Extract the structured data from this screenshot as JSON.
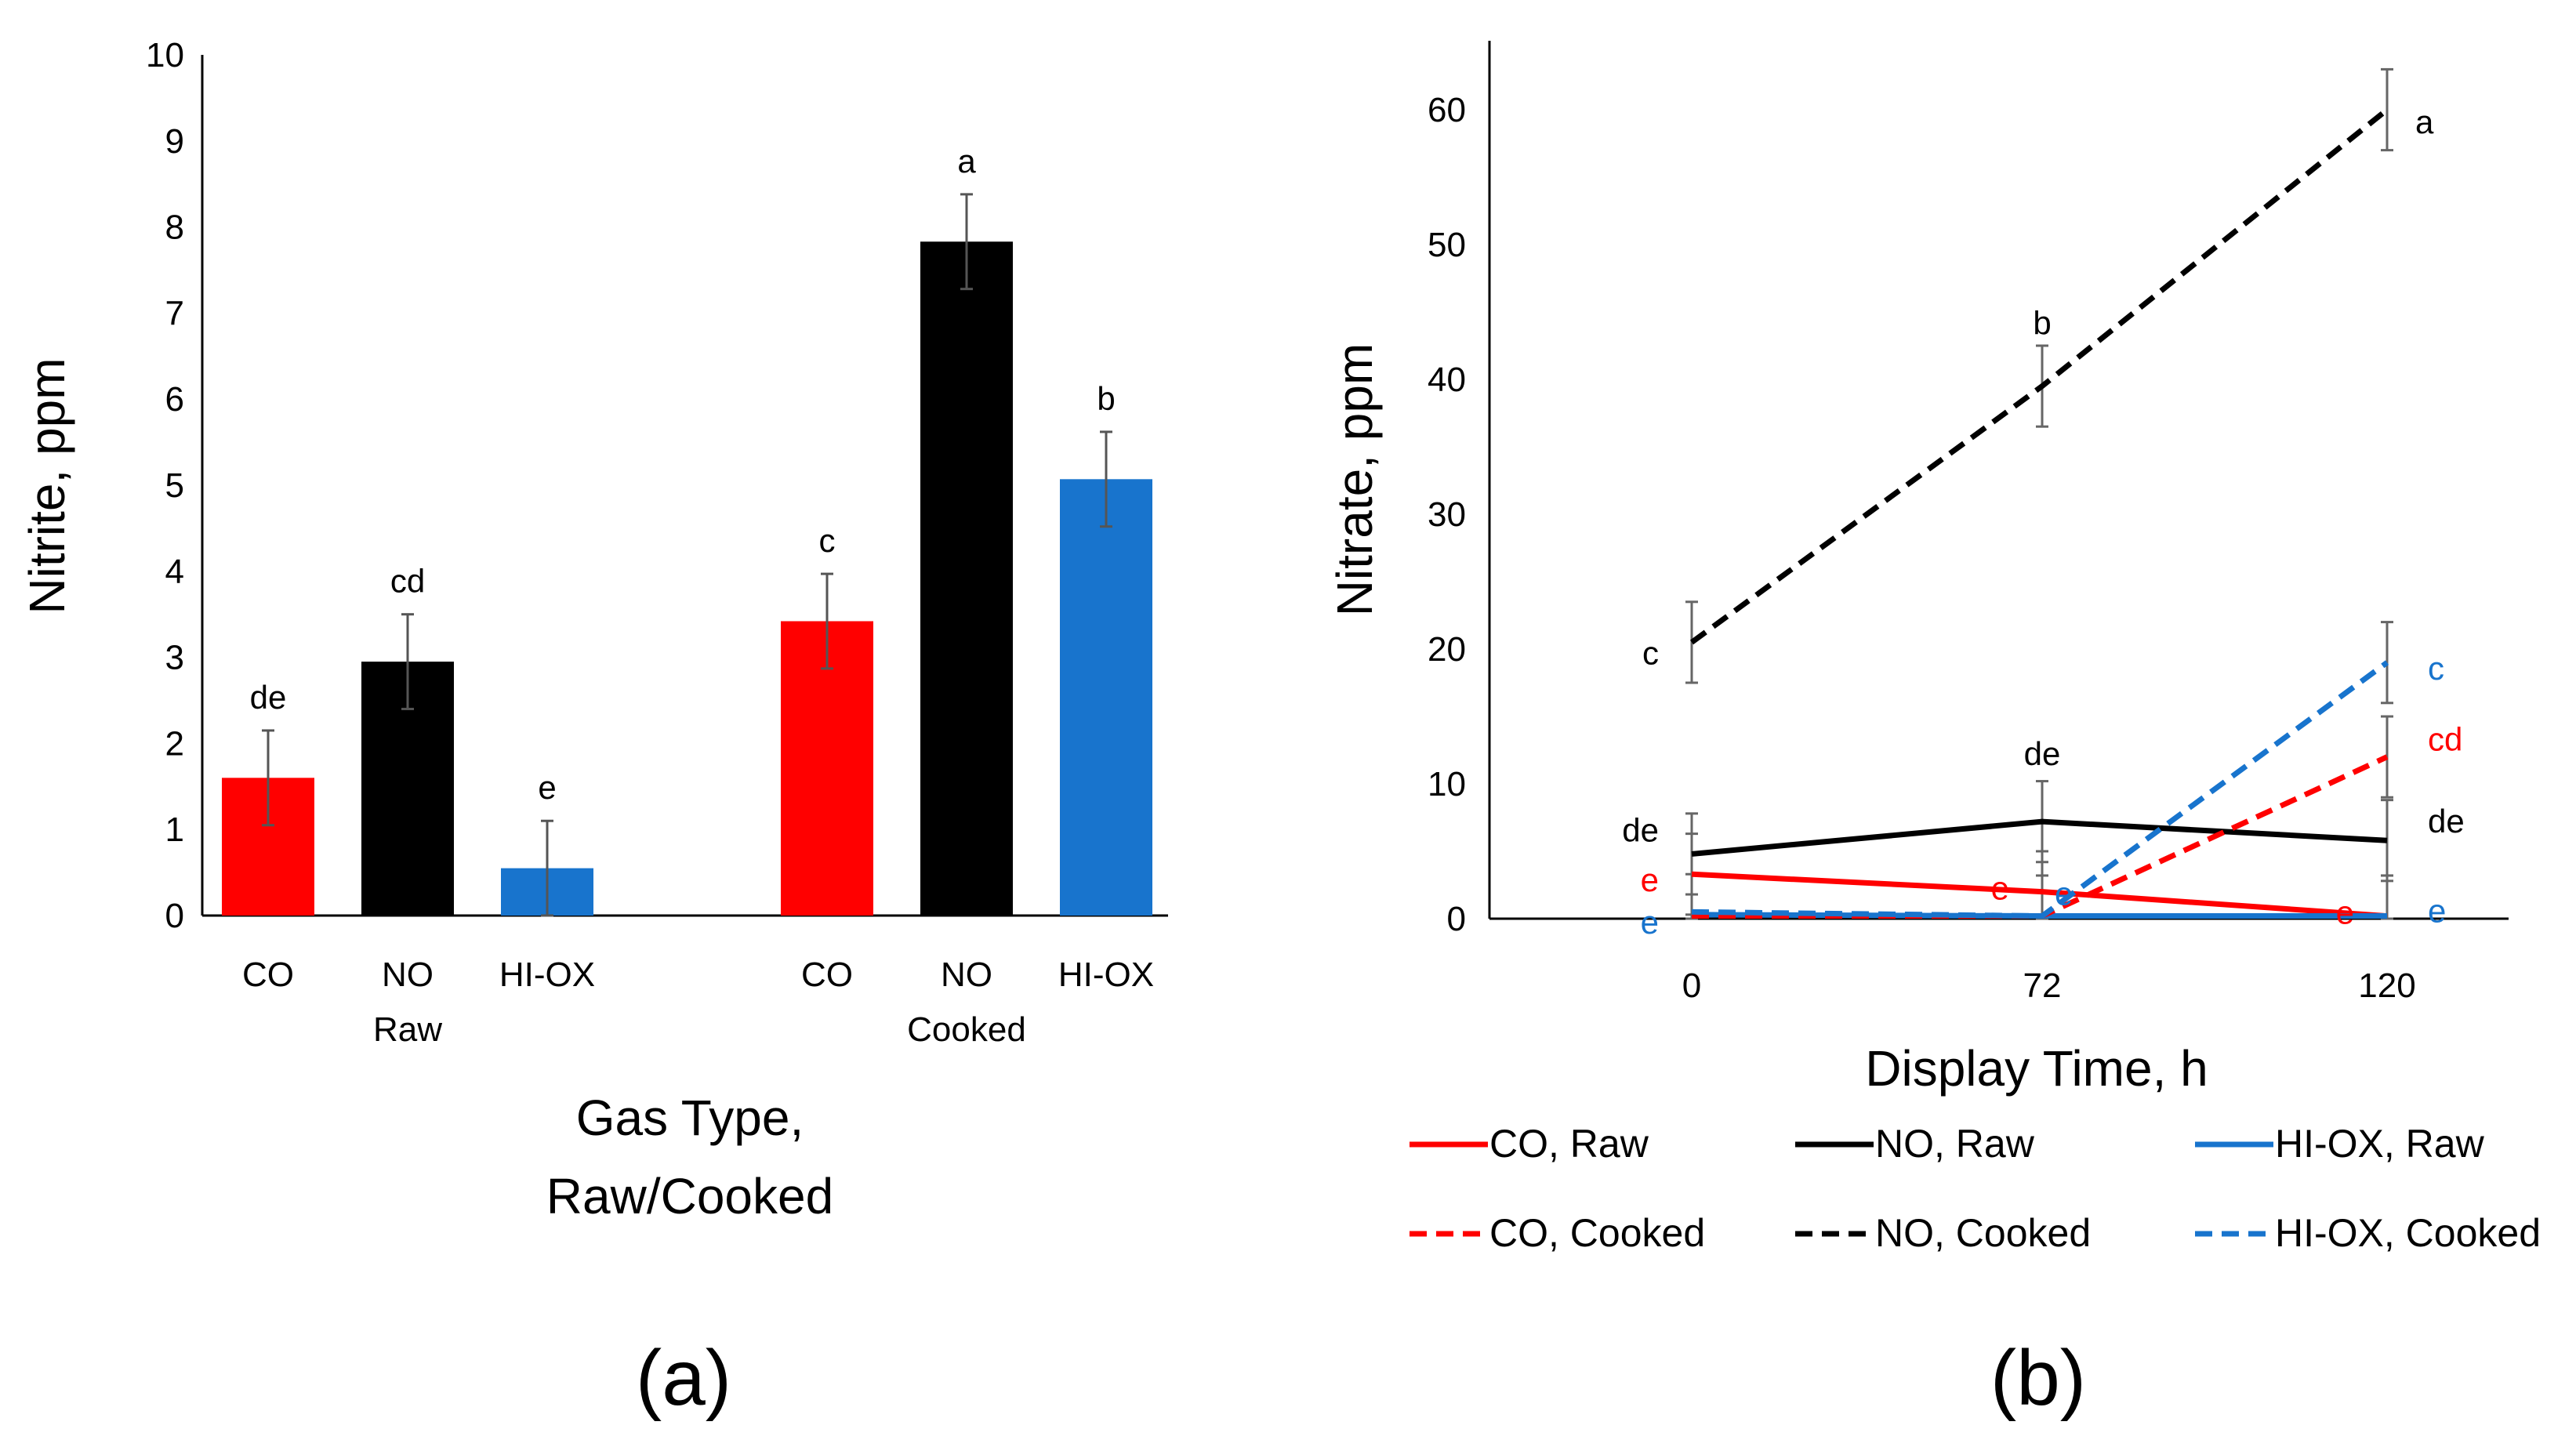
{
  "chart_data": [
    {
      "type": "bar",
      "panel_label": "(a)",
      "ylabel": "Nitrite, ppm",
      "xlabel_lines": [
        "Gas Type,",
        "Raw/Cooked"
      ],
      "ylim": [
        0,
        10
      ],
      "yticks": [
        "0",
        "1",
        "2",
        "3",
        "4",
        "5",
        "6",
        "7",
        "8",
        "9",
        "10"
      ],
      "groups": [
        {
          "label": "Raw",
          "bars": [
            {
              "category": "CO",
              "value": 1.6,
              "error": 0.55,
              "letter": "de",
              "color": "#ff0000"
            },
            {
              "category": "NO",
              "value": 2.95,
              "error": 0.55,
              "letter": "cd",
              "color": "#000000"
            },
            {
              "category": "HI-OX",
              "value": 0.55,
              "error": 0.55,
              "letter": "e",
              "color": "#1874cd"
            }
          ]
        },
        {
          "label": "Cooked",
          "bars": [
            {
              "category": "CO",
              "value": 3.42,
              "error": 0.55,
              "letter": "c",
              "color": "#ff0000"
            },
            {
              "category": "NO",
              "value": 7.83,
              "error": 0.55,
              "letter": "a",
              "color": "#000000"
            },
            {
              "category": "HI-OX",
              "value": 5.07,
              "error": 0.55,
              "letter": "b",
              "color": "#1874cd"
            }
          ]
        }
      ]
    },
    {
      "type": "line",
      "panel_label": "(b)",
      "ylabel": "Nitrate, ppm",
      "xlabel": "Display Time, h",
      "x": [
        "0",
        "72",
        "120"
      ],
      "ylim": [
        0,
        65
      ],
      "yticks": [
        "0",
        "10",
        "20",
        "30",
        "40",
        "50",
        "60"
      ],
      "series": [
        {
          "name": "CO, Raw",
          "color": "#ff0000",
          "dash": false,
          "values": [
            3.3,
            2.0,
            0.2
          ],
          "errors": [
            3.0,
            3.0,
            3.0
          ],
          "letters": [
            "e",
            "e",
            "e"
          ]
        },
        {
          "name": "NO, Raw",
          "color": "#000000",
          "dash": false,
          "values": [
            4.8,
            7.2,
            5.8
          ],
          "errors": [
            3.0,
            3.0,
            3.0
          ],
          "letters": [
            "de",
            "de",
            "de"
          ]
        },
        {
          "name": "HI-OX, Raw",
          "color": "#1874cd",
          "dash": false,
          "values": [
            0.3,
            0.2,
            0.2
          ],
          "errors": [
            3.0,
            3.0,
            3.0
          ],
          "letters": [
            "e",
            "e",
            "e"
          ]
        },
        {
          "name": "CO, Cooked",
          "color": "#ff0000",
          "dash": true,
          "values": [
            0.2,
            0.2,
            12.0
          ],
          "errors": [
            0,
            0,
            3.0
          ],
          "letters": [
            "",
            "",
            "cd"
          ]
        },
        {
          "name": "NO, Cooked",
          "color": "#000000",
          "dash": true,
          "values": [
            20.5,
            39.5,
            60.0
          ],
          "errors": [
            3.0,
            3.0,
            3.0
          ],
          "letters": [
            "c",
            "b",
            "a"
          ]
        },
        {
          "name": "HI-OX, Cooked",
          "color": "#1874cd",
          "dash": true,
          "values": [
            0.5,
            0.2,
            19.0
          ],
          "errors": [
            0,
            0,
            3.0
          ],
          "letters": [
            "",
            "",
            "c"
          ]
        }
      ],
      "legend_position": "bottom"
    }
  ]
}
